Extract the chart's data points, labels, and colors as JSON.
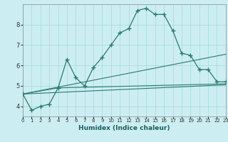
{
  "xlabel": "Humidex (Indice chaleur)",
  "bg_color": "#cceef2",
  "grid_color": "#aadddd",
  "line_color": "#2a7a6a",
  "xlim": [
    0,
    23
  ],
  "ylim": [
    3.5,
    9.0
  ],
  "yticks": [
    4,
    5,
    6,
    7,
    8
  ],
  "xticks": [
    0,
    1,
    2,
    3,
    4,
    5,
    6,
    7,
    8,
    9,
    10,
    11,
    12,
    13,
    14,
    15,
    16,
    17,
    18,
    19,
    20,
    21,
    22,
    23
  ],
  "line1_x": [
    0,
    1,
    2,
    3,
    4,
    5,
    6,
    7,
    8,
    9,
    10,
    11,
    12,
    13,
    14,
    15,
    16,
    17,
    18,
    19,
    20,
    21,
    22,
    23
  ],
  "line1_y": [
    4.6,
    3.8,
    4.0,
    4.1,
    4.9,
    6.3,
    5.4,
    5.0,
    5.9,
    6.4,
    7.0,
    7.6,
    7.8,
    8.7,
    8.8,
    8.5,
    8.5,
    7.7,
    6.6,
    6.5,
    5.8,
    5.8,
    5.2,
    5.2
  ],
  "line2_x": [
    0,
    23
  ],
  "line2_y": [
    4.6,
    6.55
  ],
  "line3_x": [
    0,
    23
  ],
  "line3_y": [
    4.6,
    5.05
  ],
  "line4_x": [
    0,
    4,
    23
  ],
  "line4_y": [
    4.6,
    4.9,
    5.1
  ]
}
